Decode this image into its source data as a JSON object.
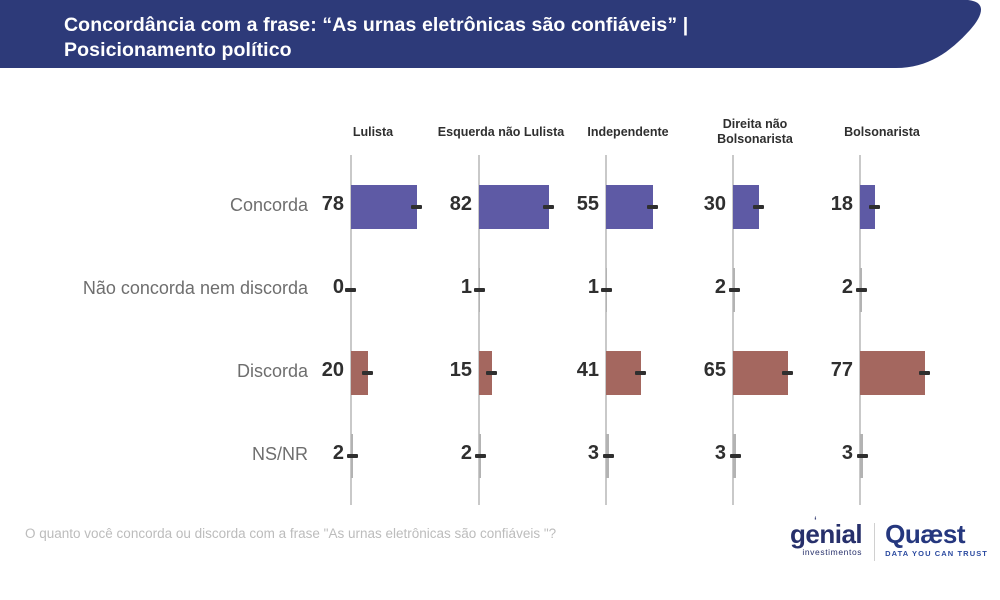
{
  "header": {
    "title_line1": "Concordância com a frase: “As urnas eletrônicas são confiáveis” |",
    "title_line2": "Posicionamento político",
    "banner_color": "#2d3a79"
  },
  "chart_data": {
    "type": "bar",
    "orientation": "horizontal",
    "categories": [
      "Concorda",
      "Não concorda nem discorda",
      "Discorda",
      "NS/NR"
    ],
    "series": [
      {
        "name": "Lulista",
        "values": [
          78,
          0,
          20,
          2
        ]
      },
      {
        "name": "Esquerda não Lulista",
        "values": [
          82,
          1,
          15,
          2
        ]
      },
      {
        "name": "Independente",
        "values": [
          55,
          1,
          41,
          3
        ]
      },
      {
        "name": "Direita não Bolsonarista",
        "values": [
          30,
          2,
          65,
          3
        ]
      },
      {
        "name": "Bolsonarista",
        "values": [
          18,
          2,
          77,
          3
        ]
      }
    ],
    "value_range": [
      0,
      100
    ],
    "grid": "off",
    "legend": "none",
    "row_colors": {
      "Concorda": "#5e5aa5",
      "Não concorda nem discorda": "#b3b3b3",
      "Discorda": "#a4675f",
      "NS/NR": "#b3b3b3"
    },
    "axis_color": "#c9c9c9",
    "marker_color": "#2f2f2f"
  },
  "footer": {
    "question": "O quanto você concorda ou discorda com a frase \"As urnas eletrônicas são confiáveis \"?"
  },
  "branding": {
    "genial_name": "genial",
    "genial_sub": "investimentos",
    "quaest_name": "Quæst",
    "quaest_tagline": "DATA YOU CAN TRUST"
  }
}
